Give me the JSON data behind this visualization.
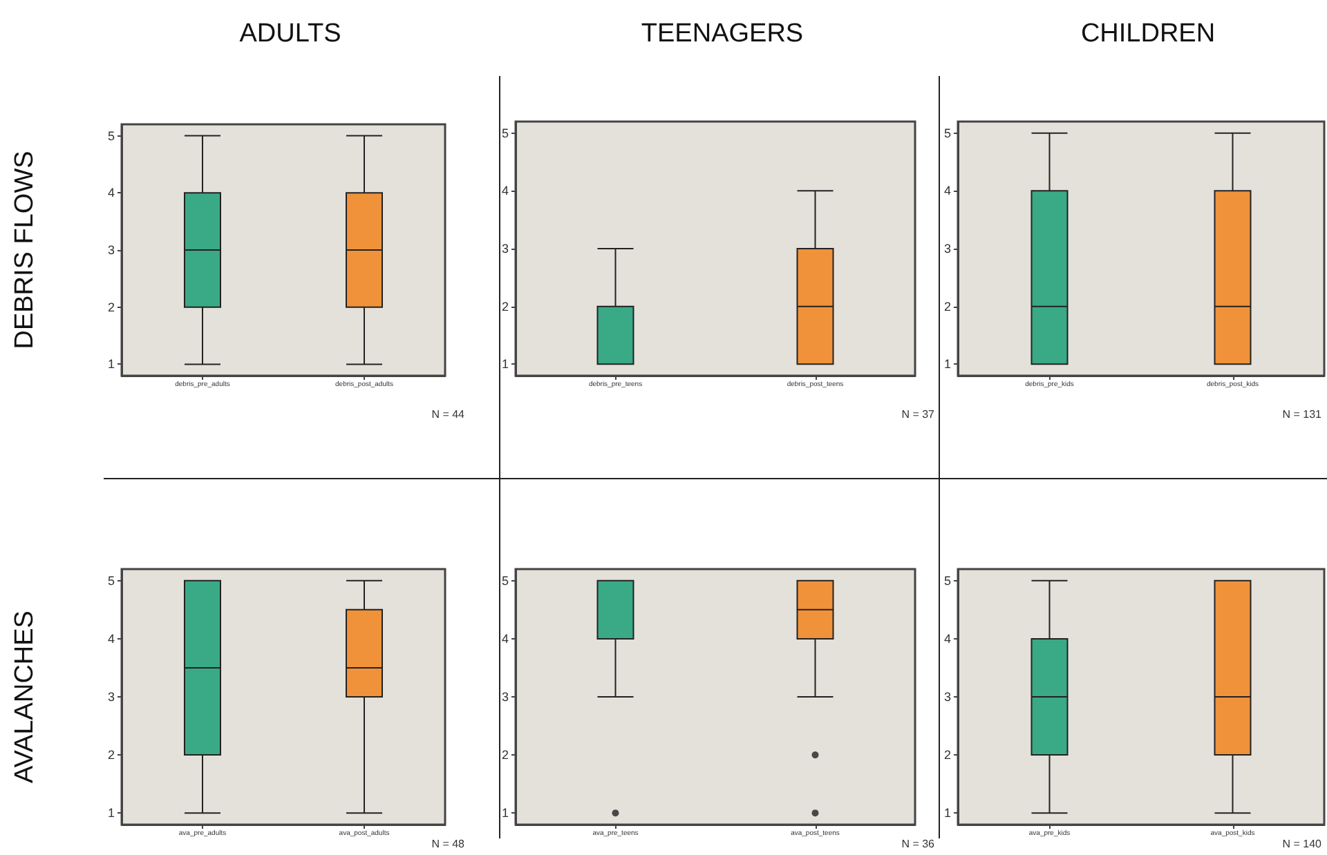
{
  "chart_data": [
    {
      "type": "box",
      "title": "ADULTS",
      "ylabel": "DEBRIS FLOWS",
      "categories": [
        "debris_pre_adults",
        "debris_post_adults"
      ],
      "colors": [
        "#3aa986",
        "#f0923a"
      ],
      "boxes": [
        {
          "low": 1,
          "q1": 2,
          "median": 3,
          "q3": 4,
          "high": 5
        },
        {
          "low": 1,
          "q1": 2,
          "median": 3,
          "q3": 4,
          "high": 5
        }
      ],
      "ylim": [
        0.8,
        5.2
      ],
      "yticks": [
        1,
        2,
        3,
        4,
        5
      ],
      "grid": false,
      "annotations": [
        "N = 44"
      ]
    },
    {
      "type": "box",
      "title": "TEENAGERS",
      "categories": [
        "debris_pre_teens",
        "debris_post_teens"
      ],
      "colors": [
        "#3aa986",
        "#f0923a"
      ],
      "boxes": [
        {
          "low": 1,
          "q1": 1,
          "median": 1,
          "q3": 2,
          "high": 3
        },
        {
          "low": 1,
          "q1": 1,
          "median": 2,
          "q3": 3,
          "high": 4
        }
      ],
      "ylim": [
        0.8,
        5.2
      ],
      "yticks": [
        1,
        2,
        3,
        4,
        5
      ],
      "grid": false,
      "annotations": [
        "N = 37"
      ]
    },
    {
      "type": "box",
      "title": "CHILDREN",
      "categories": [
        "debris_pre_kids",
        "debris_post_kids"
      ],
      "colors": [
        "#3aa986",
        "#f0923a"
      ],
      "boxes": [
        {
          "low": 1,
          "q1": 1,
          "median": 2,
          "q3": 4,
          "high": 5
        },
        {
          "low": 1,
          "q1": 1,
          "median": 2,
          "q3": 4,
          "high": 5
        }
      ],
      "ylim": [
        0.8,
        5.2
      ],
      "yticks": [
        1,
        2,
        3,
        4,
        5
      ],
      "grid": false,
      "annotations": [
        "N = 131"
      ]
    },
    {
      "type": "box",
      "ylabel": "AVALANCHES",
      "categories": [
        "ava_pre_adults",
        "ava_post_adults"
      ],
      "colors": [
        "#3aa986",
        "#f0923a"
      ],
      "boxes": [
        {
          "low": 1,
          "q1": 2,
          "median": 3.5,
          "q3": 5,
          "high": 5
        },
        {
          "low": 1,
          "q1": 3,
          "median": 3.5,
          "q3": 4.5,
          "high": 5
        }
      ],
      "ylim": [
        0.8,
        5.2
      ],
      "yticks": [
        1,
        2,
        3,
        4,
        5
      ],
      "grid": false,
      "annotations": [
        "N = 48"
      ]
    },
    {
      "type": "box",
      "categories": [
        "ava_pre_teens",
        "ava_post_teens"
      ],
      "colors": [
        "#3aa986",
        "#f0923a"
      ],
      "boxes": [
        {
          "low": 3,
          "q1": 4,
          "median": 4,
          "q3": 5,
          "high": 5,
          "outliers": [
            1
          ]
        },
        {
          "low": 3,
          "q1": 4,
          "median": 4.5,
          "q3": 5,
          "high": 5,
          "outliers": [
            2,
            1
          ]
        }
      ],
      "ylim": [
        0.8,
        5.2
      ],
      "yticks": [
        1,
        2,
        3,
        4,
        5
      ],
      "grid": false,
      "annotations": [
        "N = 36"
      ]
    },
    {
      "type": "box",
      "categories": [
        "ava_pre_kids",
        "ava_post_kids"
      ],
      "colors": [
        "#3aa986",
        "#f0923a"
      ],
      "boxes": [
        {
          "low": 1,
          "q1": 2,
          "median": 3,
          "q3": 4,
          "high": 5
        },
        {
          "low": 1,
          "q1": 2,
          "median": 3,
          "q3": 5,
          "high": 5
        }
      ],
      "ylim": [
        0.8,
        5.2
      ],
      "yticks": [
        1,
        2,
        3,
        4,
        5
      ],
      "grid": false,
      "annotations": [
        "N = 140"
      ]
    }
  ]
}
